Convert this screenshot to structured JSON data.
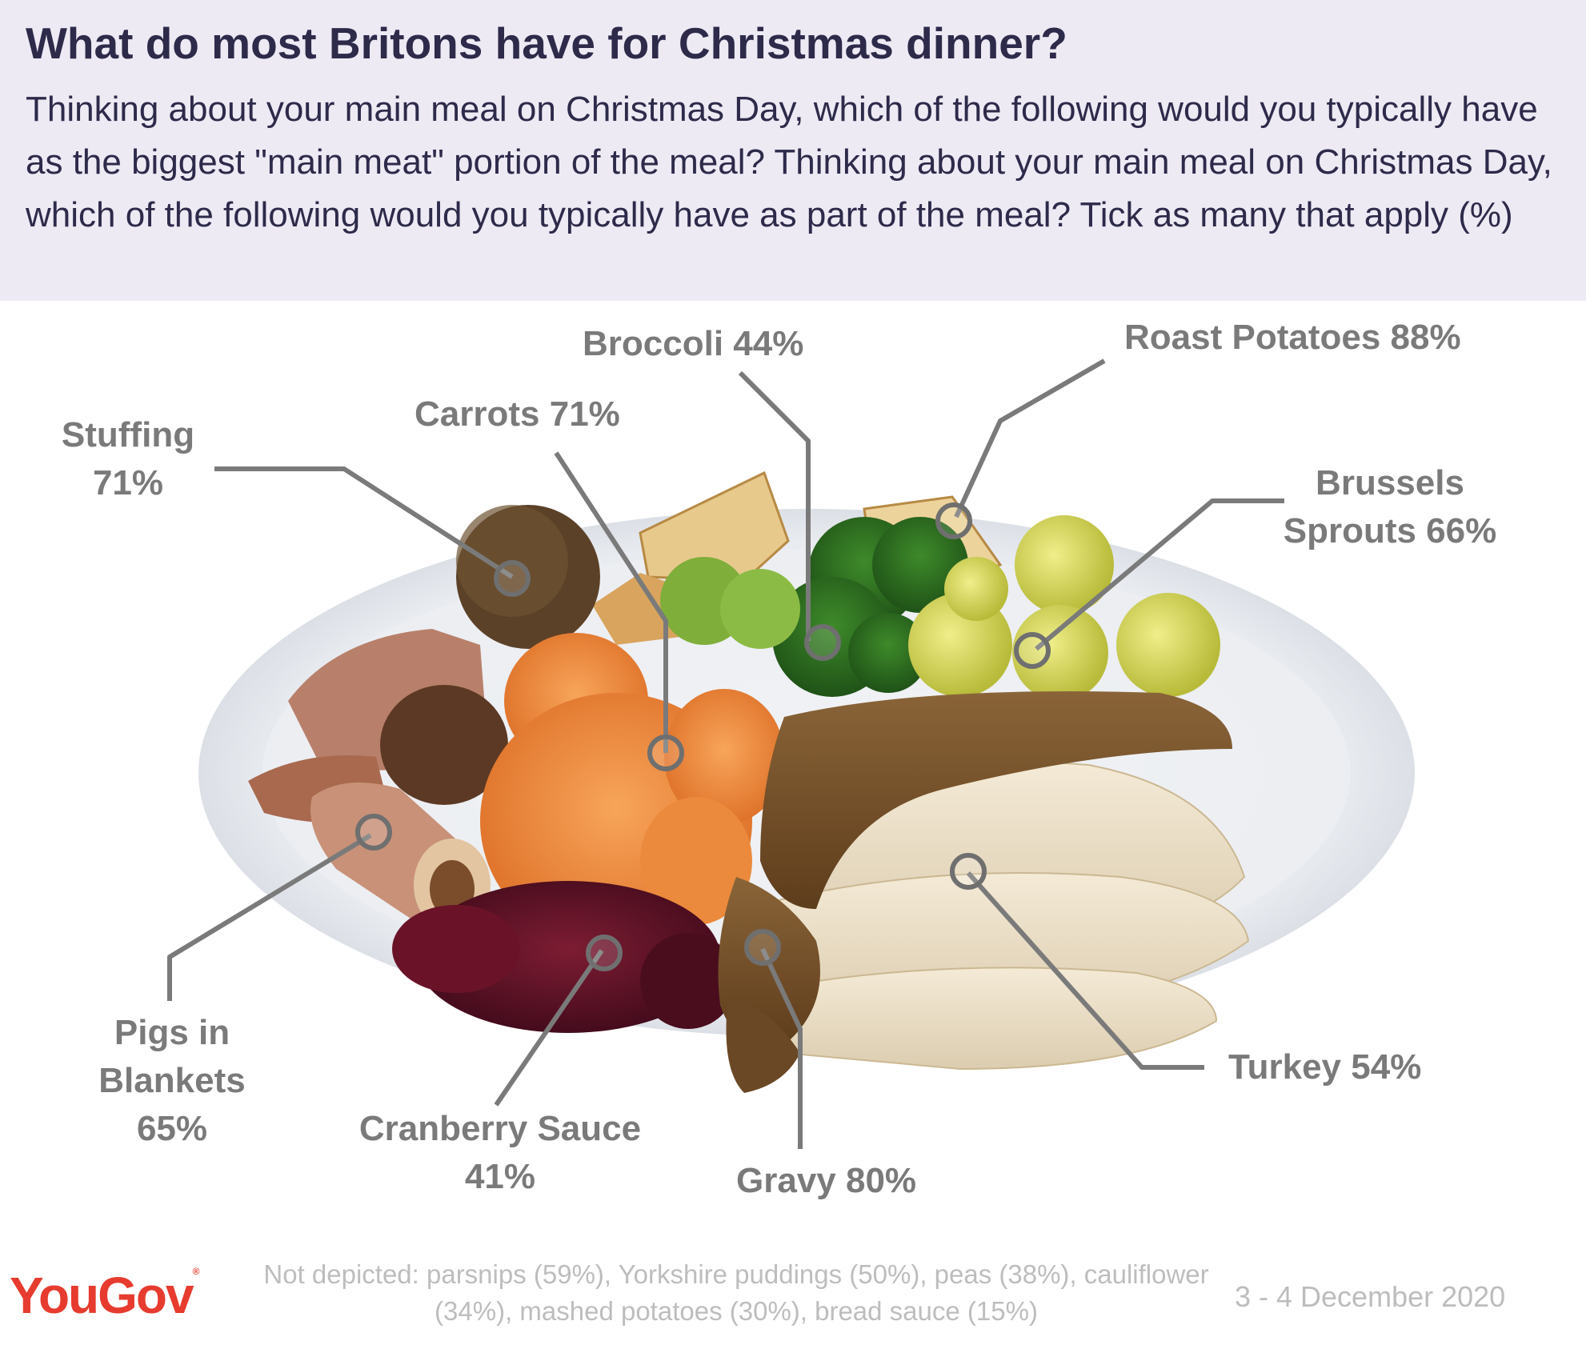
{
  "header": {
    "title": "What do most Britons have for Christmas dinner?",
    "subtitle": "Thinking about your main meal on Christmas Day, which of the following would you typically have as the biggest \"main meat\" portion of the meal? Thinking about your main meal on Christmas Day, which of the following would you typically have as part of the meal? Tick as many that apply (%)"
  },
  "items": [
    {
      "name": "Roast Potatoes",
      "value": "88%"
    },
    {
      "name": "Gravy",
      "value": "80%"
    },
    {
      "name": "Carrots",
      "value": "71%"
    },
    {
      "name": "Stuffing",
      "value": "71%"
    },
    {
      "name": "Brussels Sprouts",
      "value": "66%"
    },
    {
      "name": "Pigs in Blankets",
      "value": "65%"
    },
    {
      "name": "Turkey",
      "value": "54%"
    },
    {
      "name": "Broccoli",
      "value": "44%"
    },
    {
      "name": "Cranberry Sauce",
      "value": "41%"
    }
  ],
  "labels": {
    "roast_potatoes": "Roast Potatoes 88%",
    "broccoli": "Broccoli 44%",
    "carrots": "Carrots 71%",
    "stuffing_line1": "Stuffing",
    "stuffing_line2": "71%",
    "brussels_line1": "Brussels",
    "brussels_line2": "Sprouts 66%",
    "pigs_line1": "Pigs in",
    "pigs_line2": "Blankets",
    "pigs_line3": "65%",
    "cranberry_line1": "Cranberry Sauce",
    "cranberry_line2": "41%",
    "gravy": "Gravy 80%",
    "turkey": "Turkey 54%"
  },
  "footer": {
    "note": "Not depicted: parsnips (59%), Yorkshire puddings (50%), peas (38%), cauliflower (34%), mashed potatoes (30%), bread sauce (15%)",
    "date": "3 - 4 December 2020",
    "logo": "YouGov"
  },
  "colors": {
    "header_bg": "#eeeaf4",
    "title": "#2d2a4a",
    "label": "#7a7a7a",
    "leader_line": "#7a7a7a",
    "footer": "#bdbdbd",
    "logo": "#e63b2e"
  }
}
